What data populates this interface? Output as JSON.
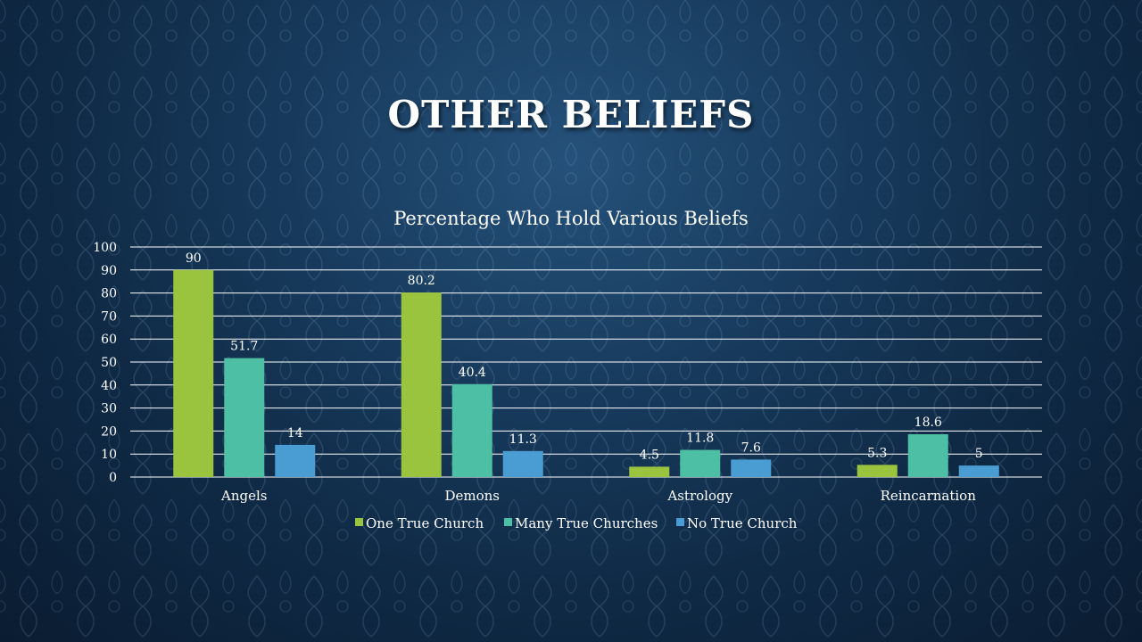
{
  "slide": {
    "title": "OTHER BELIEFS"
  },
  "colors": {
    "background": "#173a5c",
    "gridline": "#ffffff",
    "text": "#ffffff"
  },
  "chart_data": {
    "type": "bar",
    "title": "Percentage Who Hold Various Beliefs",
    "xlabel": "",
    "ylabel": "",
    "categories": [
      "Angels",
      "Demons",
      "Astrology",
      "Reincarnation"
    ],
    "series": [
      {
        "name": "One True Church",
        "values": [
          90,
          80.2,
          4.5,
          5.3
        ],
        "color": "#9bc43e"
      },
      {
        "name": "Many True Churches",
        "values": [
          51.7,
          40.4,
          11.8,
          18.6
        ],
        "color": "#4dbfa4"
      },
      {
        "name": "No True Church",
        "values": [
          14,
          11.3,
          7.6,
          5
        ],
        "color": "#4a9dd2"
      }
    ],
    "ylim": [
      0,
      100
    ],
    "yticks": [
      0,
      10,
      20,
      30,
      40,
      50,
      60,
      70,
      80,
      90,
      100
    ],
    "data_labels": [
      [
        "90",
        "80.2",
        "4.5",
        "5.3"
      ],
      [
        "51.7",
        "40.4",
        "11.8",
        "18.6"
      ],
      [
        "14",
        "11.3",
        "7.6",
        "5"
      ]
    ],
    "grid": true,
    "legend": "bottom"
  }
}
